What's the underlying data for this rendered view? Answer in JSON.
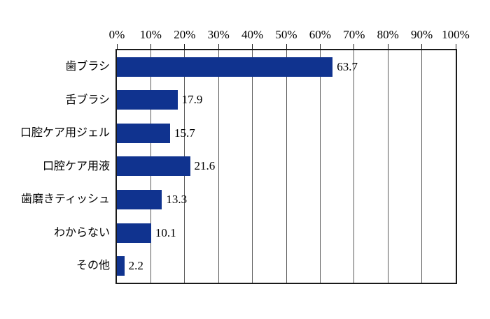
{
  "chart_data": {
    "type": "bar",
    "orientation": "horizontal",
    "title": "",
    "categories": [
      "歯ブラシ",
      "舌ブラシ",
      "口腔ケア用ジェル",
      "口腔ケア用液",
      "歯磨きティッシュ",
      "わからない",
      "その他"
    ],
    "values": [
      63.7,
      17.9,
      15.7,
      21.6,
      13.3,
      10.1,
      2.2
    ],
    "value_labels": [
      "63.7",
      "17.9",
      "15.7",
      "21.6",
      "13.3",
      "10.1",
      "2.2"
    ],
    "x_axis": {
      "position": "top",
      "min": 0,
      "max": 100,
      "step": 10,
      "tick_labels": [
        "0%",
        "10%",
        "20%",
        "30%",
        "40%",
        "50%",
        "60%",
        "70%",
        "80%",
        "90%",
        "100%"
      ]
    },
    "grid": "vertical",
    "legend": "none",
    "colors": {
      "bar": "#10338f",
      "gridline": "#5a5a5a",
      "axis_border": "#1a1a1a",
      "text": "#000000",
      "background": "#ffffff"
    }
  }
}
